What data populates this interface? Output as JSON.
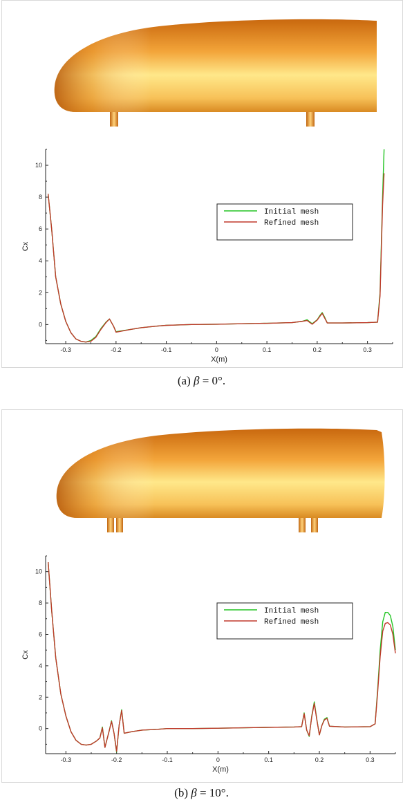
{
  "panels": [
    {
      "caption_prefix": "(a)",
      "caption_symbol": "β",
      "caption_value": "= 0°.",
      "legend": [
        "Initial mesh",
        "Refined mesh"
      ]
    },
    {
      "caption_prefix": "(b)",
      "caption_symbol": "β",
      "caption_value": "= 10°.",
      "legend": [
        "Initial mesh",
        "Refined mesh"
      ]
    }
  ],
  "colors": {
    "initial": "#22c422",
    "refined": "#c0392b",
    "body_dark": "#b85a0a",
    "body_mid": "#f0a030",
    "body_light": "#fff2a0"
  },
  "chart_data": [
    {
      "type": "line",
      "xlabel": "X(m)",
      "ylabel": "Cx",
      "xlim": [
        -0.34,
        0.35
      ],
      "ylim": [
        -1.2,
        11
      ],
      "x_ticks": [
        -0.3,
        -0.2,
        -0.1,
        0,
        0.1,
        0.2,
        0.3
      ],
      "y_ticks": [
        0,
        2,
        4,
        6,
        8,
        10
      ],
      "legend_position": "top-right",
      "series": [
        {
          "name": "Initial mesh",
          "x": [
            -0.335,
            -0.328,
            -0.32,
            -0.31,
            -0.3,
            -0.29,
            -0.28,
            -0.27,
            -0.26,
            -0.25,
            -0.24,
            -0.23,
            -0.22,
            -0.213,
            -0.205,
            -0.2,
            -0.19,
            -0.17,
            -0.15,
            -0.12,
            -0.1,
            -0.05,
            0,
            0.05,
            0.1,
            0.15,
            0.17,
            0.18,
            0.19,
            0.2,
            0.205,
            0.21,
            0.215,
            0.22,
            0.25,
            0.3,
            0.32,
            0.325,
            0.33,
            0.333
          ],
          "y": [
            8.2,
            6.0,
            3.0,
            1.3,
            0.2,
            -0.5,
            -0.9,
            -1.05,
            -1.1,
            -1.0,
            -0.75,
            -0.25,
            0.15,
            0.35,
            -0.1,
            -0.45,
            -0.4,
            -0.3,
            -0.2,
            -0.1,
            -0.05,
            0.0,
            0.02,
            0.05,
            0.08,
            0.12,
            0.2,
            0.3,
            0.05,
            0.3,
            0.55,
            0.75,
            0.45,
            0.1,
            0.1,
            0.12,
            0.15,
            2.0,
            8.0,
            11.0
          ]
        },
        {
          "name": "Refined mesh",
          "x": [
            -0.335,
            -0.328,
            -0.32,
            -0.31,
            -0.3,
            -0.29,
            -0.28,
            -0.27,
            -0.26,
            -0.25,
            -0.24,
            -0.23,
            -0.22,
            -0.213,
            -0.205,
            -0.2,
            -0.19,
            -0.17,
            -0.15,
            -0.12,
            -0.1,
            -0.05,
            0,
            0.05,
            0.1,
            0.15,
            0.17,
            0.18,
            0.19,
            0.2,
            0.205,
            0.21,
            0.215,
            0.22,
            0.25,
            0.3,
            0.32,
            0.325,
            0.33,
            0.333
          ],
          "y": [
            8.2,
            6.0,
            3.0,
            1.3,
            0.2,
            -0.5,
            -0.9,
            -1.05,
            -1.1,
            -1.05,
            -0.8,
            -0.3,
            0.12,
            0.35,
            -0.1,
            -0.48,
            -0.42,
            -0.3,
            -0.2,
            -0.1,
            -0.05,
            0.0,
            0.02,
            0.05,
            0.08,
            0.12,
            0.2,
            0.25,
            0.02,
            0.28,
            0.5,
            0.7,
            0.4,
            0.1,
            0.1,
            0.12,
            0.15,
            1.8,
            7.5,
            9.5
          ]
        }
      ]
    },
    {
      "type": "line",
      "xlabel": "X(m)",
      "ylabel": "Cx",
      "xlim": [
        -0.34,
        0.35
      ],
      "ylim": [
        -1.6,
        11
      ],
      "x_ticks": [
        -0.3,
        -0.2,
        -0.1,
        0,
        0.1,
        0.2,
        0.3
      ],
      "y_ticks": [
        0,
        2,
        4,
        6,
        8,
        10
      ],
      "legend_position": "top-right",
      "series": [
        {
          "name": "Initial mesh",
          "x": [
            -0.335,
            -0.328,
            -0.32,
            -0.31,
            -0.3,
            -0.29,
            -0.28,
            -0.27,
            -0.26,
            -0.25,
            -0.24,
            -0.233,
            -0.228,
            -0.223,
            -0.215,
            -0.21,
            -0.205,
            -0.2,
            -0.195,
            -0.19,
            -0.185,
            -0.17,
            -0.15,
            -0.12,
            -0.1,
            -0.05,
            0,
            0.05,
            0.1,
            0.15,
            0.165,
            0.17,
            0.175,
            0.18,
            0.185,
            0.19,
            0.195,
            0.2,
            0.205,
            0.21,
            0.215,
            0.22,
            0.25,
            0.3,
            0.31,
            0.315,
            0.32,
            0.325,
            0.33,
            0.335,
            0.34,
            0.345,
            0.35
          ],
          "y": [
            10.6,
            7.5,
            4.5,
            2.2,
            0.8,
            -0.2,
            -0.75,
            -1.0,
            -1.05,
            -1.0,
            -0.8,
            -0.6,
            0.1,
            -1.2,
            -0.2,
            0.5,
            -0.3,
            -1.5,
            0.2,
            1.2,
            -0.3,
            -0.2,
            -0.1,
            -0.05,
            0.0,
            0.0,
            0.02,
            0.05,
            0.08,
            0.1,
            0.12,
            1.0,
            -0.1,
            -0.5,
            0.8,
            1.7,
            0.6,
            -0.4,
            0.2,
            0.6,
            0.7,
            0.15,
            0.1,
            0.12,
            0.3,
            2.5,
            5.0,
            6.8,
            7.4,
            7.4,
            7.2,
            6.5,
            5.0
          ]
        },
        {
          "name": "Refined mesh",
          "x": [
            -0.335,
            -0.328,
            -0.32,
            -0.31,
            -0.3,
            -0.29,
            -0.28,
            -0.27,
            -0.26,
            -0.25,
            -0.24,
            -0.233,
            -0.228,
            -0.223,
            -0.215,
            -0.21,
            -0.205,
            -0.2,
            -0.195,
            -0.19,
            -0.185,
            -0.17,
            -0.15,
            -0.12,
            -0.1,
            -0.05,
            0,
            0.05,
            0.1,
            0.15,
            0.165,
            0.17,
            0.175,
            0.18,
            0.185,
            0.19,
            0.195,
            0.2,
            0.205,
            0.21,
            0.215,
            0.22,
            0.25,
            0.3,
            0.31,
            0.315,
            0.32,
            0.325,
            0.33,
            0.335,
            0.34,
            0.345,
            0.35
          ],
          "y": [
            10.6,
            7.5,
            4.5,
            2.2,
            0.8,
            -0.2,
            -0.75,
            -1.0,
            -1.05,
            -1.0,
            -0.8,
            -0.6,
            0.05,
            -1.2,
            -0.2,
            0.45,
            -0.3,
            -1.45,
            0.2,
            1.15,
            -0.3,
            -0.2,
            -0.1,
            -0.05,
            0.0,
            0.0,
            0.02,
            0.05,
            0.08,
            0.1,
            0.12,
            0.95,
            -0.1,
            -0.45,
            0.75,
            1.6,
            0.55,
            -0.4,
            0.2,
            0.55,
            0.65,
            0.15,
            0.1,
            0.12,
            0.3,
            2.3,
            4.6,
            6.2,
            6.7,
            6.75,
            6.6,
            6.0,
            4.8
          ]
        }
      ]
    }
  ]
}
